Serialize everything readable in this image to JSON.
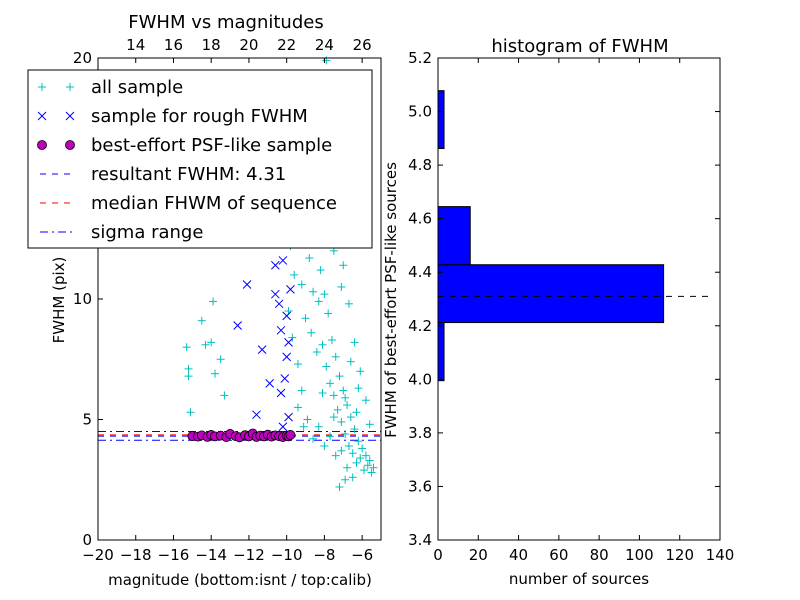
{
  "chart_data": [
    {
      "type": "scatter",
      "title": "FWHM vs magnitudes",
      "xlabel": "magnitude (bottom:isnt / top:calib)",
      "ylabel": "FWHM (pix)",
      "xlim": [
        -20,
        -5
      ],
      "ylim": [
        0,
        20
      ],
      "xticks": [
        -20,
        -18,
        -16,
        -14,
        -12,
        -10,
        -8,
        -6
      ],
      "xtick_labels": [
        "−20",
        "−18",
        "−16",
        "−14",
        "−12",
        "−10",
        "−8",
        "−6"
      ],
      "yticks": [
        0,
        5,
        10,
        20
      ],
      "ytick_labels": [
        "0",
        "5",
        "10",
        "20"
      ],
      "top_axis_ticks": [
        14,
        16,
        18,
        20,
        22,
        24,
        26
      ],
      "top_axis_offset": 32.0,
      "legend_position": "upper-left",
      "legend": [
        {
          "label": "all sample",
          "marker": "plus",
          "color": "#00bfbf"
        },
        {
          "label": "sample for rough FWHM",
          "marker": "x",
          "color": "#0000ff"
        },
        {
          "label": "best-effort PSF-like sample",
          "marker": "circle",
          "color": "#bf00bf"
        },
        {
          "label": "resultant FWHM: 4.31",
          "marker": "dashed-line",
          "color": "#0000ff"
        },
        {
          "label": "median FHWM of sequence",
          "marker": "dashed-line",
          "color": "#ff0000"
        },
        {
          "label": "sigma range",
          "marker": "dashdot-line",
          "color": "#0000ff"
        }
      ],
      "series": [
        {
          "name": "all sample",
          "marker": "plus",
          "color": "#00bfbf",
          "points": [
            [
              -15.3,
              8.0
            ],
            [
              -15.2,
              6.8
            ],
            [
              -15.1,
              5.3
            ],
            [
              -15.0,
              12.3
            ],
            [
              -14.5,
              9.1
            ],
            [
              -14.0,
              8.2
            ],
            [
              -13.8,
              6.9
            ],
            [
              -13.9,
              9.9
            ],
            [
              -13.5,
              7.5
            ],
            [
              -13.3,
              6.0
            ],
            [
              -15.2,
              7.1
            ],
            [
              -15.3,
              12.5
            ],
            [
              -14.3,
              8.1
            ],
            [
              -9.9,
              9.5
            ],
            [
              -9.8,
              12.2
            ],
            [
              -9.7,
              8.4
            ],
            [
              -9.6,
              11.0
            ],
            [
              -9.5,
              14.0
            ],
            [
              -9.4,
              7.3
            ],
            [
              -9.3,
              12.8
            ],
            [
              -9.2,
              10.6
            ],
            [
              -9.1,
              15.5
            ],
            [
              -9.0,
              9.2
            ],
            [
              -8.9,
              13.6
            ],
            [
              -8.8,
              11.7
            ],
            [
              -8.7,
              8.6
            ],
            [
              -8.6,
              10.3
            ],
            [
              -8.5,
              12.4
            ],
            [
              -8.4,
              7.8
            ],
            [
              -8.3,
              9.9
            ],
            [
              -8.2,
              11.2
            ],
            [
              -8.1,
              8.1
            ],
            [
              -8.0,
              10.2
            ],
            [
              -7.9,
              7.2
            ],
            [
              -7.8,
              9.4
            ],
            [
              -7.7,
              6.5
            ],
            [
              -7.6,
              8.3
            ],
            [
              -7.5,
              6.0
            ],
            [
              -7.4,
              7.6
            ],
            [
              -7.3,
              5.4
            ],
            [
              -7.2,
              6.8
            ],
            [
              -7.1,
              4.9
            ],
            [
              -7.0,
              6.2
            ],
            [
              -6.9,
              4.4
            ],
            [
              -6.8,
              5.6
            ],
            [
              -6.7,
              3.9
            ],
            [
              -6.6,
              5.1
            ],
            [
              -6.5,
              3.6
            ],
            [
              -6.4,
              4.6
            ],
            [
              -6.3,
              3.2
            ],
            [
              -6.2,
              4.1
            ],
            [
              -6.1,
              3.4
            ],
            [
              -6.0,
              3.8
            ],
            [
              -5.9,
              2.9
            ],
            [
              -5.8,
              3.5
            ],
            [
              -5.7,
              3.1
            ],
            [
              -5.6,
              3.3
            ],
            [
              -5.5,
              2.8
            ],
            [
              -5.4,
              3.0
            ],
            [
              -9.4,
              5.5
            ],
            [
              -8.9,
              5.0
            ],
            [
              -8.6,
              4.2
            ],
            [
              -8.3,
              4.7
            ],
            [
              -8.0,
              3.9
            ],
            [
              -7.7,
              4.3
            ],
            [
              -7.4,
              3.5
            ],
            [
              -7.1,
              3.7
            ],
            [
              -6.8,
              3.0
            ],
            [
              -6.5,
              2.6
            ],
            [
              -7.2,
              2.2
            ],
            [
              -6.9,
              2.5
            ],
            [
              -8.8,
              16.5
            ],
            [
              -8.5,
              18.4
            ],
            [
              -8.2,
              17.2
            ],
            [
              -7.9,
              19.9
            ],
            [
              -7.6,
              15.1
            ],
            [
              -7.3,
              13.2
            ],
            [
              -7.0,
              11.4
            ],
            [
              -6.7,
              9.8
            ],
            [
              -6.4,
              8.2
            ],
            [
              -6.1,
              7.0
            ],
            [
              -5.8,
              5.8
            ],
            [
              -5.6,
              4.8
            ],
            [
              -7.8,
              13.8
            ],
            [
              -7.5,
              12.0
            ],
            [
              -8.7,
              14.7
            ],
            [
              -9.0,
              18.0
            ],
            [
              -8.4,
              15.9
            ],
            [
              -7.1,
              10.5
            ],
            [
              -6.6,
              7.4
            ],
            [
              -6.2,
              6.3
            ],
            [
              -9.2,
              6.2
            ],
            [
              -9.1,
              4.7
            ],
            [
              -8.1,
              6.1
            ],
            [
              -7.5,
              5.1
            ],
            [
              -6.9,
              5.9
            ],
            [
              -6.3,
              5.3
            ]
          ]
        },
        {
          "name": "sample for rough FWHM",
          "marker": "x",
          "color": "#0000ff",
          "points": [
            [
              -12.1,
              10.6
            ],
            [
              -12.6,
              8.9
            ],
            [
              -11.3,
              7.9
            ],
            [
              -10.9,
              6.5
            ],
            [
              -11.6,
              5.2
            ],
            [
              -10.7,
              13.5
            ],
            [
              -10.5,
              12.8
            ],
            [
              -10.4,
              9.8
            ],
            [
              -10.3,
              8.7
            ],
            [
              -10.2,
              11.6
            ],
            [
              -10.1,
              6.7
            ],
            [
              -10.0,
              7.6
            ],
            [
              -9.9,
              5.1
            ],
            [
              -9.9,
              12.3
            ],
            [
              -9.8,
              10.4
            ],
            [
              -10.6,
              11.4
            ],
            [
              -10.8,
              12.4
            ],
            [
              -10.4,
              14.5
            ],
            [
              -10.2,
              4.7
            ],
            [
              -10.0,
              9.3
            ],
            [
              -9.9,
              8.2
            ],
            [
              -10.3,
              6.1
            ],
            [
              -10.6,
              10.2
            ],
            [
              -10.1,
              13.2
            ],
            [
              -9.8,
              12.9
            ]
          ]
        },
        {
          "name": "best-effort PSF-like sample",
          "marker": "circle",
          "color": "#bf00bf",
          "points": [
            [
              -15.0,
              4.31
            ],
            [
              -14.7,
              4.29
            ],
            [
              -14.5,
              4.34
            ],
            [
              -14.2,
              4.28
            ],
            [
              -14.0,
              4.36
            ],
            [
              -13.8,
              4.3
            ],
            [
              -13.5,
              4.33
            ],
            [
              -13.2,
              4.27
            ],
            [
              -13.0,
              4.4
            ],
            [
              -12.7,
              4.31
            ],
            [
              -12.5,
              4.26
            ],
            [
              -12.2,
              4.35
            ],
            [
              -12.0,
              4.3
            ],
            [
              -11.8,
              4.42
            ],
            [
              -11.6,
              4.28
            ],
            [
              -11.4,
              4.33
            ],
            [
              -11.2,
              4.3
            ],
            [
              -11.0,
              4.37
            ],
            [
              -10.8,
              4.29
            ],
            [
              -10.6,
              4.34
            ],
            [
              -10.4,
              4.31
            ],
            [
              -10.2,
              4.27
            ],
            [
              -10.0,
              4.33
            ],
            [
              -9.9,
              4.3
            ],
            [
              -9.8,
              4.36
            ]
          ]
        }
      ],
      "horizontal_lines": [
        {
          "name": "resultant FWHM: 4.31",
          "y": 4.31,
          "style": "dashed",
          "color": "#0000ff"
        },
        {
          "name": "median FHWM of sequence",
          "y": 4.36,
          "style": "dashed",
          "color": "#ff0000"
        },
        {
          "name": "sigma range upper",
          "y": 4.5,
          "style": "dashdot",
          "color": "#0000ff"
        },
        {
          "name": "sigma range lower",
          "y": 4.14,
          "style": "dashdot",
          "color": "#0000ff"
        }
      ],
      "grid": false
    },
    {
      "type": "bar",
      "orientation": "horizontal",
      "title": "histogram of FWHM",
      "xlabel": "number of sources",
      "ylabel": "FWHM of best-effort PSF-like sources",
      "xlim": [
        0,
        140
      ],
      "ylim": [
        3.4,
        5.2
      ],
      "xticks": [
        0,
        20,
        40,
        60,
        80,
        100,
        120,
        140
      ],
      "yticks": [
        3.4,
        3.6,
        3.8,
        4.0,
        4.2,
        4.4,
        4.6,
        4.8,
        5.0,
        5.2
      ],
      "ytick_labels": [
        "3.4",
        "3.6",
        "3.8",
        "4.0",
        "4.2",
        "4.4",
        "4.6",
        "4.8",
        "5.0",
        "5.2"
      ],
      "bins": [
        {
          "low": 3.995,
          "high": 4.212,
          "count": 3
        },
        {
          "low": 4.212,
          "high": 4.428,
          "count": 112
        },
        {
          "low": 4.428,
          "high": 4.645,
          "count": 16
        },
        {
          "low": 4.645,
          "high": 4.862,
          "count": 0
        },
        {
          "low": 4.862,
          "high": 5.078,
          "count": 3
        }
      ],
      "bar_color": "#0000ff",
      "reference_line": {
        "y": 4.31,
        "x_end": 135,
        "style": "dashed",
        "color": "#000000"
      },
      "grid": false
    }
  ]
}
